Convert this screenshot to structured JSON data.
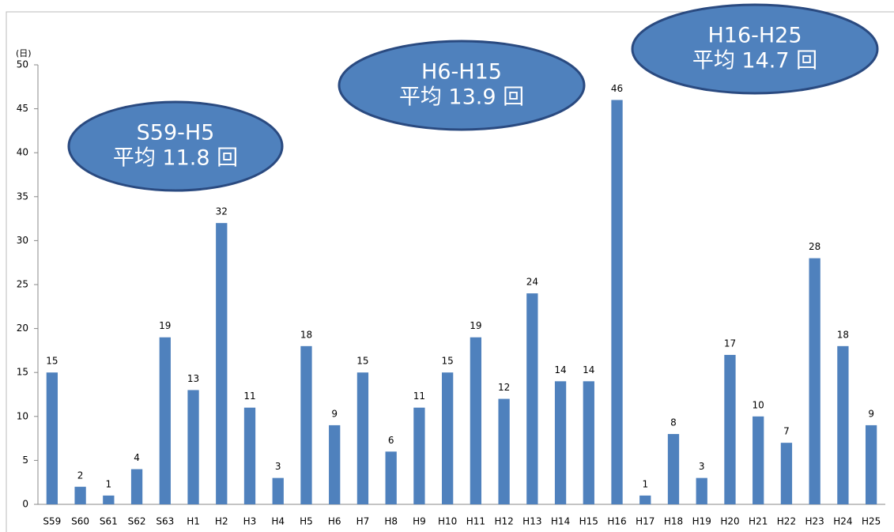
{
  "chart_data": {
    "type": "bar",
    "y_label": "(日)",
    "categories": [
      "S59",
      "S60",
      "S61",
      "S62",
      "S63",
      "H1",
      "H2",
      "H3",
      "H4",
      "H5",
      "H6",
      "H7",
      "H8",
      "H9",
      "H10",
      "H11",
      "H12",
      "H13",
      "H14",
      "H15",
      "H16",
      "H17",
      "H18",
      "H19",
      "H20",
      "H21",
      "H22",
      "H23",
      "H24",
      "H25"
    ],
    "values": [
      15,
      2,
      1,
      4,
      19,
      13,
      32,
      11,
      3,
      18,
      9,
      15,
      6,
      11,
      15,
      19,
      12,
      24,
      14,
      14,
      46,
      1,
      8,
      3,
      17,
      10,
      7,
      28,
      18,
      9
    ],
    "color": "#4f81bd",
    "ylim": [
      0,
      50
    ],
    "yticks": [
      0,
      5,
      10,
      15,
      20,
      25,
      30,
      35,
      40,
      45,
      50
    ],
    "grid": false,
    "annotations": [
      {
        "lines": [
          "S59-H5",
          "平均 11.8 回"
        ]
      },
      {
        "lines": [
          "H6-H15",
          "平均 13.9 回"
        ]
      },
      {
        "lines": [
          "H16-H25",
          "平均 14.7 回"
        ]
      }
    ],
    "annotation_color": "#4f81bd"
  }
}
